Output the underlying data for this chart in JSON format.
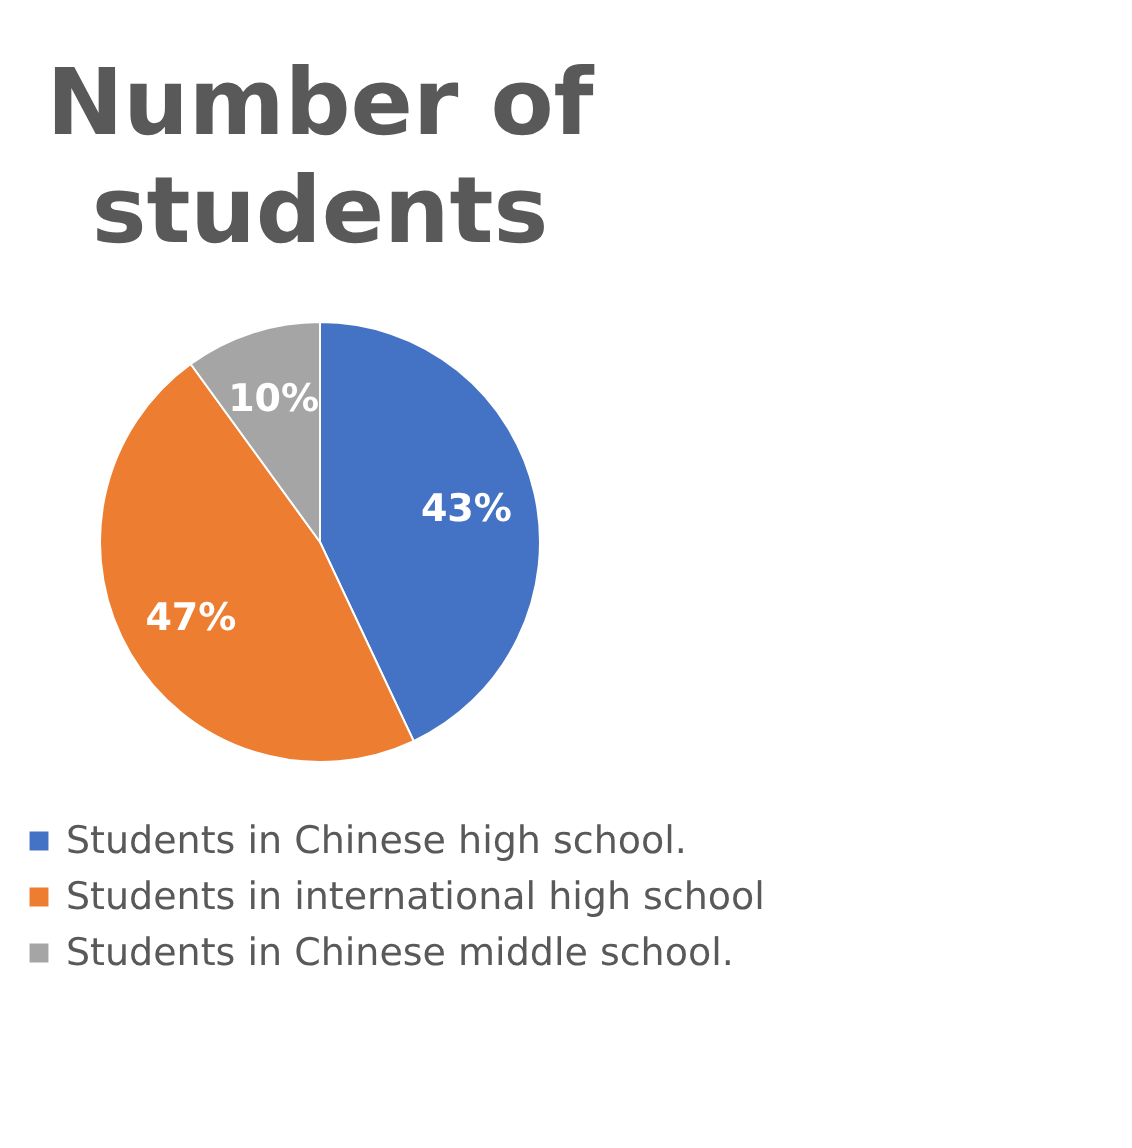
{
  "chart_data": {
    "type": "pie",
    "title": "Number of students",
    "categories": [
      "Students in Chinese high school.",
      "Students in international high school",
      "Students in Chinese middle school."
    ],
    "values": [
      43,
      47,
      10
    ],
    "colors": [
      "#4472c4",
      "#ed7d31",
      "#a5a5a5"
    ],
    "value_labels": [
      "43%",
      "47%",
      "10%"
    ],
    "legend": "bottom"
  }
}
